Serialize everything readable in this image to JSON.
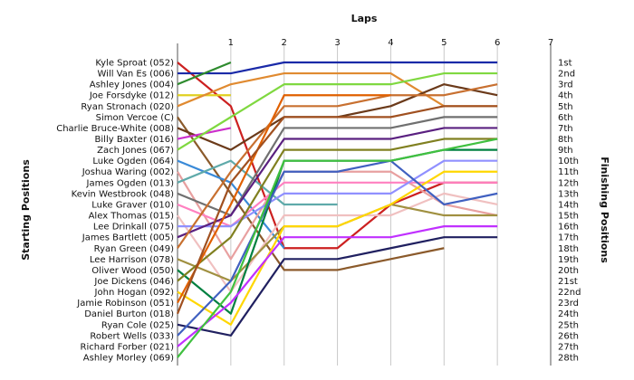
{
  "chart_data": {
    "type": "line",
    "title": "Laps",
    "xlabel": "Laps",
    "ylabel_left": "Starting Positions",
    "ylabel_right": "Finishing Positions",
    "x_ticks": [
      "1",
      "2",
      "3",
      "4",
      "5",
      "6",
      "7"
    ],
    "xlim": [
      0,
      7
    ],
    "ylim": [
      1,
      28
    ],
    "y_inverted": true,
    "finishing_labels": [
      "1st",
      "2nd",
      "3rd",
      "4th",
      "5th",
      "6th",
      "7th",
      "8th",
      "9th",
      "10th",
      "11th",
      "12th",
      "13th",
      "14th",
      "15th",
      "16th",
      "17th",
      "18th",
      "19th",
      "20th",
      "21st",
      "22nd",
      "23rd",
      "24th",
      "25th",
      "26th",
      "27th",
      "28th"
    ],
    "drivers": [
      "Kyle Sproat (052)",
      "Will Van Es (006)",
      "Ashley Jones (004)",
      "Joe Forsdyke (012)",
      "Ryan Stronach (020)",
      "Simon Vercoe (C)",
      "Charlie Bruce-White (008)",
      "Billy Baxter (016)",
      "Zach Jones (067)",
      "Luke Ogden (064)",
      "Joshua Waring (002)",
      "James Ogden (013)",
      "Kevin Westbrook (048)",
      "Luke Graver (010)",
      "Alex Thomas (015)",
      "Lee Drinkall (075)",
      "James Bartlett (005)",
      "Ryan Green (049)",
      "Lee Harrison (078)",
      "Oliver Wood (050)",
      "Joe Dickens (046)",
      "John Hogan (092)",
      "Jamie Robinson (051)",
      "Daniel Burton (018)",
      "Ryan Cole (025)",
      "Robert Wells (033)",
      "Richard Forber (021)",
      "Ashley Morley (069)"
    ],
    "series": [
      {
        "color": "#cc2020",
        "values": [
          1,
          5,
          18,
          18,
          14,
          12,
          12
        ]
      },
      {
        "color": "#1a2aa8",
        "values": [
          2,
          2,
          1,
          1,
          1,
          1,
          1
        ]
      },
      {
        "color": "#2e8b2e",
        "values": [
          3,
          1
        ]
      },
      {
        "color": "#e0d020",
        "values": [
          4,
          4
        ]
      },
      {
        "color": "#e08a30",
        "values": [
          5,
          3,
          2,
          2,
          2,
          5,
          5
        ]
      },
      {
        "color": "#8b5a2b",
        "values": [
          6,
          13,
          20,
          20,
          19,
          18
        ]
      },
      {
        "color": "#6b3a1a",
        "values": [
          7,
          9,
          6,
          6,
          5,
          3,
          4
        ]
      },
      {
        "color": "#cc30cc",
        "values": [
          8,
          7
        ]
      },
      {
        "color": "#7fd840",
        "values": [
          9,
          6,
          3,
          3,
          3,
          2,
          2
        ]
      },
      {
        "color": "#3a8ad8",
        "values": [
          10,
          12,
          18
        ]
      },
      {
        "color": "#e8a0a0",
        "values": [
          11,
          19,
          11,
          11,
          11,
          14,
          15
        ]
      },
      {
        "color": "#5faaaa",
        "values": [
          12,
          10,
          14,
          14
        ]
      },
      {
        "color": "#707070",
        "values": [
          13,
          15,
          7,
          7,
          7,
          6,
          6
        ]
      },
      {
        "color": "#ff80c0",
        "values": [
          14,
          16,
          12,
          12,
          12,
          12,
          12
        ]
      },
      {
        "color": "#f0c0c0",
        "values": [
          15,
          22,
          15,
          15,
          15,
          13,
          14
        ]
      },
      {
        "color": "#9090ff",
        "values": [
          16,
          16,
          13,
          13,
          13,
          10,
          10
        ]
      },
      {
        "color": "#5a2080",
        "values": [
          17,
          15,
          8,
          8,
          8,
          7,
          7
        ]
      },
      {
        "color": "#c87030",
        "values": [
          18,
          11,
          5,
          5,
          4,
          4,
          3
        ]
      },
      {
        "color": "#a09040",
        "values": [
          19,
          21,
          16,
          16,
          14,
          15,
          15
        ]
      },
      {
        "color": "#008040",
        "values": [
          20,
          24,
          10,
          10,
          10,
          9,
          9
        ]
      },
      {
        "color": "#808020",
        "values": [
          21,
          17,
          9,
          9,
          9,
          8,
          8
        ]
      },
      {
        "color": "#ffd700",
        "values": [
          22,
          25,
          16,
          16,
          14,
          11,
          11
        ]
      },
      {
        "color": "#e06000",
        "values": [
          23,
          14,
          4,
          4,
          4
        ]
      },
      {
        "color": "#a05020",
        "values": [
          24,
          12,
          6,
          6,
          6,
          5,
          5
        ]
      },
      {
        "color": "#202060",
        "values": [
          25,
          26,
          19,
          19,
          18,
          17,
          17
        ]
      },
      {
        "color": "#4060c0",
        "values": [
          26,
          21,
          11,
          11,
          10,
          14,
          13
        ]
      },
      {
        "color": "#c030ff",
        "values": [
          27,
          23,
          17,
          17,
          17,
          16,
          16
        ]
      },
      {
        "color": "#40c040",
        "values": [
          28,
          22,
          10,
          10,
          10,
          9,
          8
        ]
      }
    ]
  }
}
